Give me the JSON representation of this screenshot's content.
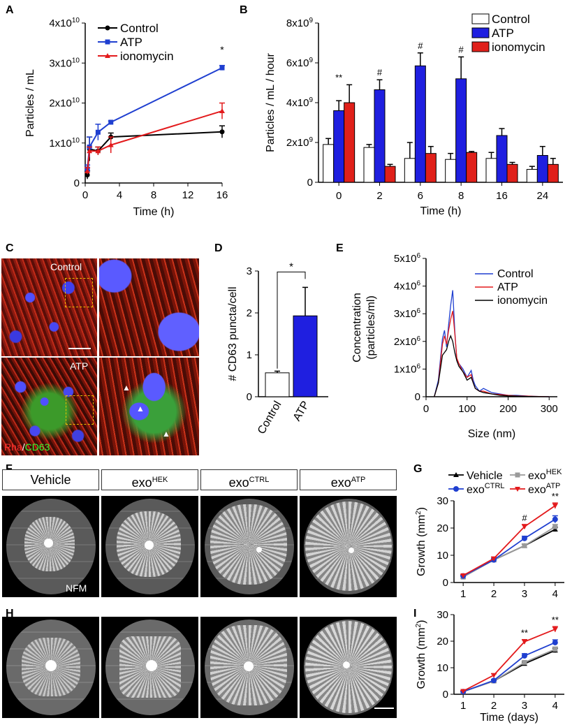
{
  "panels": {
    "a": "A",
    "b": "B",
    "c": "C",
    "d": "D",
    "e": "E",
    "f": "F",
    "g": "G",
    "h": "H",
    "i": "I"
  },
  "micrographs": {
    "control_label": "Control",
    "atp_label": "ATP",
    "stain_red": "Rha",
    "stain_sep": "/",
    "stain_green": "CD63"
  },
  "explants": {
    "headers": [
      "Vehicle",
      "exo",
      "exo",
      "exo"
    ],
    "superscripts": [
      "",
      "HEK",
      "CTRL",
      "ATP"
    ],
    "nfm_label": "NFM"
  },
  "colors": {
    "control": "#000000",
    "atp": "#1f3fd0",
    "ionomycin": "#e31a1c",
    "bar_blue": "#1f1fe0",
    "bar_red": "#e0201a",
    "hek_gray": "#9a9a9a"
  },
  "chart_data": [
    {
      "id": "A",
      "type": "line",
      "xlabel": "Time (h)",
      "ylabel": "Particles / mL",
      "xticks": [
        "0",
        "4",
        "8",
        "12",
        "16"
      ],
      "yticks": [
        "0",
        "1x10",
        "2x10",
        "3x10",
        "4x10"
      ],
      "ytick_exp": "10",
      "xlim": [
        0,
        16
      ],
      "ylim": [
        0,
        40000000000.0
      ],
      "annotation": "*",
      "series": [
        {
          "name": "Control",
          "x": [
            0.25,
            0.5,
            1.5,
            3,
            16
          ],
          "y": [
            2000000000.0,
            8500000000.0,
            8000000000.0,
            11500000000.0,
            12800000000.0
          ],
          "err": [
            1000000000.0,
            3000000000.0,
            1000000000.0,
            1000000000.0,
            1500000000.0
          ]
        },
        {
          "name": "ATP",
          "x": [
            0.25,
            0.5,
            1.5,
            3,
            16
          ],
          "y": [
            3500000000.0,
            9000000000.0,
            12700000000.0,
            15200000000.0,
            28800000000.0
          ],
          "err": [
            1000000000.0,
            2500000000.0,
            2000000000.0,
            300000000.0,
            600000000.0
          ]
        },
        {
          "name": "ionomycin",
          "x": [
            0.25,
            0.5,
            1.5,
            3,
            16
          ],
          "y": [
            3000000000.0,
            8000000000.0,
            8000000000.0,
            9500000000.0,
            18000000000.0
          ],
          "err": [
            800000000.0,
            1000000000.0,
            1000000000.0,
            2000000000.0,
            2000000000.0
          ]
        }
      ]
    },
    {
      "id": "B",
      "type": "bar",
      "xlabel": "Time (h)",
      "ylabel": "Particles / mL / hour",
      "categories": [
        "0",
        "2",
        "6",
        "8",
        "16",
        "24"
      ],
      "yticks": [
        "0",
        "2x10",
        "4x10",
        "6x10",
        "8x10"
      ],
      "ytick_exp": "9",
      "ylim": [
        0,
        8000000000.0
      ],
      "annotations": [
        "**",
        "#",
        "#",
        "#",
        "",
        ""
      ],
      "series": [
        {
          "name": "Control",
          "values": [
            1900000000.0,
            1750000000.0,
            1200000000.0,
            1150000000.0,
            1200000000.0,
            650000000.0
          ],
          "err": [
            300000000.0,
            150000000.0,
            800000000.0,
            300000000.0,
            300000000.0,
            150000000.0
          ]
        },
        {
          "name": "ATP",
          "values": [
            3600000000.0,
            4650000000.0,
            5850000000.0,
            5200000000.0,
            2350000000.0,
            1350000000.0
          ],
          "err": [
            500000000.0,
            500000000.0,
            650000000.0,
            1100000000.0,
            350000000.0,
            450000000.0
          ]
        },
        {
          "name": "ionomycin",
          "values": [
            4000000000.0,
            800000000.0,
            1450000000.0,
            1500000000.0,
            900000000.0,
            900000000.0
          ],
          "err": [
            900000000.0,
            100000000.0,
            350000000.0,
            50000000.0,
            100000000.0,
            300000000.0
          ]
        }
      ]
    },
    {
      "id": "D",
      "type": "bar",
      "ylabel": "# CD63 puncta/cell",
      "categories": [
        "Control",
        "ATP"
      ],
      "values": [
        0.57,
        1.93
      ],
      "err": [
        0.04,
        0.68
      ],
      "yticks": [
        "0",
        "1",
        "2",
        "3"
      ],
      "ylim": [
        0,
        3
      ],
      "annotation": "*"
    },
    {
      "id": "E",
      "type": "line",
      "xlabel": "Size (nm)",
      "ylabel": "Concentration",
      "ylabel2": "(particles/ml)",
      "xticks": [
        "0",
        "100",
        "200",
        "300"
      ],
      "yticks": [
        "0",
        "1x10",
        "2x10",
        "3x10",
        "4x10",
        "5x10"
      ],
      "ytick_exp": "6",
      "xlim": [
        0,
        320
      ],
      "ylim": [
        0,
        5000000.0
      ],
      "series": [
        {
          "name": "Control",
          "x": [
            20,
            30,
            40,
            45,
            50,
            55,
            60,
            65,
            70,
            75,
            80,
            90,
            100,
            110,
            115,
            120,
            130,
            140,
            160,
            180,
            200,
            220,
            250,
            300
          ],
          "y": [
            0,
            600000.0,
            2100000.0,
            2400000.0,
            1800000.0,
            2600000.0,
            3300000.0,
            3850000.0,
            2400000.0,
            1300000.0,
            1200000.0,
            1000000.0,
            700000.0,
            950000.0,
            600000.0,
            400000.0,
            200000.0,
            300000.0,
            150000.0,
            100000.0,
            50000.0,
            50000.0,
            20000.0,
            0
          ]
        },
        {
          "name": "ATP",
          "x": [
            20,
            30,
            40,
            45,
            50,
            55,
            60,
            65,
            70,
            75,
            80,
            90,
            100,
            110,
            115,
            120,
            130,
            140,
            160,
            180,
            200,
            220,
            250,
            300
          ],
          "y": [
            0,
            500000.0,
            1900000.0,
            2200000.0,
            1900000.0,
            2400000.0,
            2800000.0,
            3100000.0,
            2300000.0,
            1400000.0,
            1200000.0,
            900000.0,
            700000.0,
            800000.0,
            500000.0,
            300000.0,
            200000.0,
            200000.0,
            100000.0,
            80000.0,
            50000.0,
            30000.0,
            20000.0,
            0
          ]
        },
        {
          "name": "ionomycin",
          "x": [
            20,
            30,
            40,
            45,
            50,
            55,
            60,
            65,
            70,
            75,
            80,
            90,
            100,
            110,
            115,
            120,
            130,
            140,
            160,
            180,
            200,
            220,
            250,
            300
          ],
          "y": [
            0,
            500000.0,
            1500000.0,
            1600000.0,
            1700000.0,
            2000000.0,
            2200000.0,
            2000000.0,
            1600000.0,
            1300000.0,
            1100000.0,
            900000.0,
            600000.0,
            700000.0,
            500000.0,
            300000.0,
            200000.0,
            150000.0,
            100000.0,
            50000.0,
            30000.0,
            20000.0,
            10000.0,
            0
          ]
        }
      ]
    },
    {
      "id": "G",
      "type": "line",
      "ylabel": "Growth (mm",
      "ylabel_sup": "2",
      "ylabel_end": ")",
      "xticks": [
        "1",
        "2",
        "3",
        "4"
      ],
      "yticks": [
        "0",
        "10",
        "20",
        "30"
      ],
      "ylim": [
        0,
        30
      ],
      "annotations": [
        "",
        "",
        "#",
        "**"
      ],
      "legend": [
        "Vehicle",
        "exo",
        "exo",
        "exo"
      ],
      "legend_sup": [
        "",
        "HEK",
        "CTRL",
        "ATP"
      ],
      "series": [
        {
          "name": "Vehicle",
          "x": [
            1,
            2,
            3,
            4
          ],
          "y": [
            2.2,
            8.3,
            13.5,
            19.5
          ],
          "err": [
            0.3,
            0.4,
            0.6,
            0.8
          ]
        },
        {
          "name": "exoHEK",
          "x": [
            1,
            2,
            3,
            4
          ],
          "y": [
            2.0,
            8.3,
            13.5,
            20.5
          ],
          "err": [
            0.3,
            0.4,
            0.6,
            0.8
          ]
        },
        {
          "name": "exoCTRL",
          "x": [
            1,
            2,
            3,
            4
          ],
          "y": [
            2.4,
            8.3,
            16.2,
            23.2
          ],
          "err": [
            0.3,
            0.5,
            0.8,
            1.3
          ]
        },
        {
          "name": "exoATP",
          "x": [
            1,
            2,
            3,
            4
          ],
          "y": [
            2.6,
            8.8,
            20.5,
            28.2
          ],
          "err": [
            0.3,
            0.5,
            0.8,
            1.0
          ]
        }
      ]
    },
    {
      "id": "I",
      "type": "line",
      "xlabel": "Time (days)",
      "ylabel": "Growth (mm",
      "ylabel_sup": "2",
      "ylabel_end": ")",
      "xticks": [
        "1",
        "2",
        "3",
        "4"
      ],
      "yticks": [
        "0",
        "10",
        "20",
        "30"
      ],
      "ylim": [
        0,
        30
      ],
      "annotations": [
        "",
        "",
        "**",
        "**"
      ],
      "series": [
        {
          "name": "Vehicle",
          "x": [
            1,
            2,
            3,
            4
          ],
          "y": [
            1.0,
            5.0,
            11.5,
            16.5
          ],
          "err": [
            0.2,
            0.4,
            0.6,
            0.8
          ]
        },
        {
          "name": "exoHEK",
          "x": [
            1,
            2,
            3,
            4
          ],
          "y": [
            1.0,
            5.0,
            12.0,
            17.0
          ],
          "err": [
            0.2,
            0.4,
            0.6,
            0.8
          ]
        },
        {
          "name": "exoCTRL",
          "x": [
            1,
            2,
            3,
            4
          ],
          "y": [
            1.0,
            5.2,
            14.5,
            19.5
          ],
          "err": [
            0.2,
            0.4,
            0.8,
            1.0
          ]
        },
        {
          "name": "exoATP",
          "x": [
            1,
            2,
            3,
            4
          ],
          "y": [
            1.2,
            7.2,
            19.8,
            24.5
          ],
          "err": [
            0.2,
            0.5,
            0.8,
            1.0
          ]
        }
      ]
    }
  ]
}
